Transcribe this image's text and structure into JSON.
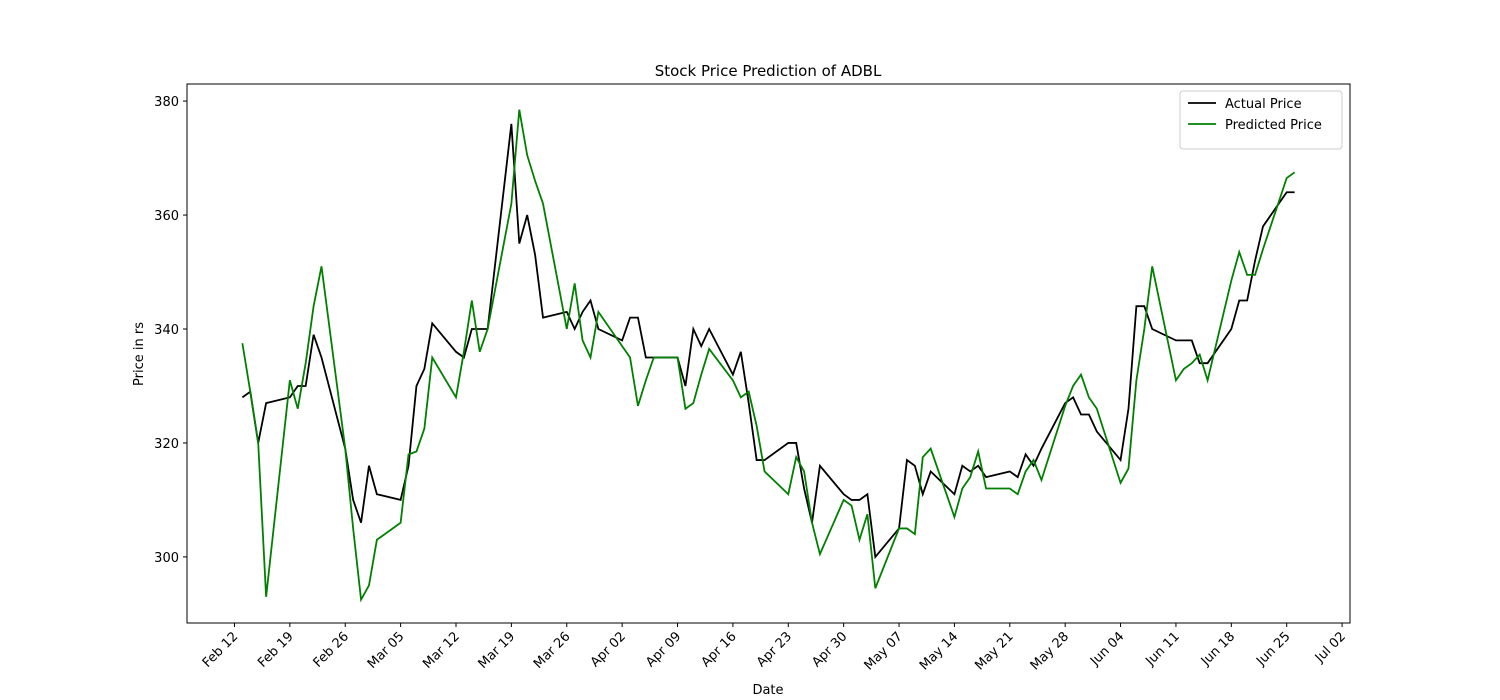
{
  "chart_data": {
    "type": "line",
    "title": "Stock Price Prediction of ADBL",
    "x_label": "Date",
    "y_label": "Price in rs",
    "x": [
      "Feb 13",
      "Feb 14",
      "Feb 15",
      "Feb 16",
      "Feb 19",
      "Feb 20",
      "Feb 21",
      "Feb 22",
      "Feb 23",
      "Feb 26",
      "Feb 27",
      "Feb 28",
      "Mar 01",
      "Mar 02",
      "Mar 05",
      "Mar 06",
      "Mar 07",
      "Mar 08",
      "Mar 09",
      "Mar 12",
      "Mar 13",
      "Mar 14",
      "Mar 15",
      "Mar 16",
      "Mar 19",
      "Mar 20",
      "Mar 21",
      "Mar 22",
      "Mar 23",
      "Mar 26",
      "Mar 27",
      "Mar 28",
      "Mar 29",
      "Mar 30",
      "Apr 02",
      "Apr 03",
      "Apr 04",
      "Apr 05",
      "Apr 06",
      "Apr 09",
      "Apr 10",
      "Apr 11",
      "Apr 12",
      "Apr 13",
      "Apr 16",
      "Apr 17",
      "Apr 18",
      "Apr 19",
      "Apr 20",
      "Apr 23",
      "Apr 24",
      "Apr 25",
      "Apr 26",
      "Apr 27",
      "Apr 30",
      "May 01",
      "May 02",
      "May 03",
      "May 04",
      "May 07",
      "May 08",
      "May 09",
      "May 10",
      "May 11",
      "May 14",
      "May 15",
      "May 16",
      "May 17",
      "May 18",
      "May 21",
      "May 22",
      "May 23",
      "May 24",
      "May 25",
      "May 28",
      "May 29",
      "May 30",
      "May 31",
      "Jun 01",
      "Jun 04",
      "Jun 05",
      "Jun 06",
      "Jun 07",
      "Jun 08",
      "Jun 11",
      "Jun 12",
      "Jun 13",
      "Jun 14",
      "Jun 15",
      "Jun 18",
      "Jun 19",
      "Jun 20",
      "Jun 21",
      "Jun 22",
      "Jun 25",
      "Jun 26"
    ],
    "series": [
      {
        "name": "Actual Price",
        "color": "#000000",
        "values": [
          328,
          329,
          320,
          327,
          328,
          330,
          330,
          339,
          335,
          319,
          310,
          306,
          316,
          311,
          310,
          316,
          330,
          333,
          341,
          336,
          335,
          340,
          340,
          340,
          376,
          355,
          360,
          353,
          342,
          343,
          340,
          343,
          345,
          340,
          338,
          342,
          342,
          335,
          335,
          335,
          330,
          340,
          337,
          340,
          332,
          336,
          327,
          317,
          317,
          320,
          320,
          312,
          306,
          316,
          311,
          310,
          310,
          311,
          300,
          305,
          317,
          316,
          311,
          315,
          311,
          316,
          315,
          316,
          314,
          315,
          314,
          318,
          316,
          319,
          327,
          328,
          325,
          325,
          322,
          317,
          326,
          344,
          344,
          340,
          338,
          338,
          338,
          334,
          334,
          340,
          345,
          345,
          352,
          358,
          364,
          364
        ]
      },
      {
        "name": "Predicted Price",
        "color": "#008000",
        "values": [
          337.5,
          329,
          320,
          293,
          331,
          326,
          334,
          344,
          351,
          319,
          305,
          292.5,
          295,
          303,
          306,
          318,
          318.5,
          322.5,
          335,
          328,
          336,
          345,
          336,
          340,
          362,
          378.5,
          370.5,
          366,
          362,
          340,
          348,
          338,
          335,
          343,
          337,
          335,
          326.5,
          331,
          335,
          335,
          326,
          327,
          332,
          336.5,
          331,
          328,
          329,
          323,
          315,
          311,
          317.5,
          315,
          306,
          300.5,
          310,
          309,
          303,
          307.5,
          294.5,
          305,
          305,
          304,
          317.5,
          319,
          307,
          312,
          314,
          318.5,
          312,
          312,
          311,
          315,
          317,
          313.5,
          326.5,
          330,
          332,
          328,
          326,
          313,
          315.5,
          331,
          340,
          351,
          331,
          333,
          334,
          335.5,
          331,
          348.5,
          353.5,
          349.5,
          349.5,
          354,
          366.5,
          367.5
        ]
      }
    ],
    "xlim": [
      "Feb 06",
      "Jul 03"
    ],
    "xticks": [
      "Feb 12",
      "Feb 19",
      "Feb 26",
      "Mar 05",
      "Mar 12",
      "Mar 19",
      "Mar 26",
      "Apr 02",
      "Apr 09",
      "Apr 16",
      "Apr 23",
      "Apr 30",
      "May 07",
      "May 14",
      "May 21",
      "May 28",
      "Jun 04",
      "Jun 11",
      "Jun 18",
      "Jun 25",
      "Jul 02"
    ],
    "ylim": [
      288.4,
      383
    ],
    "yticks": [
      300,
      320,
      340,
      360,
      380
    ],
    "grid": false,
    "legend": "upper right"
  }
}
